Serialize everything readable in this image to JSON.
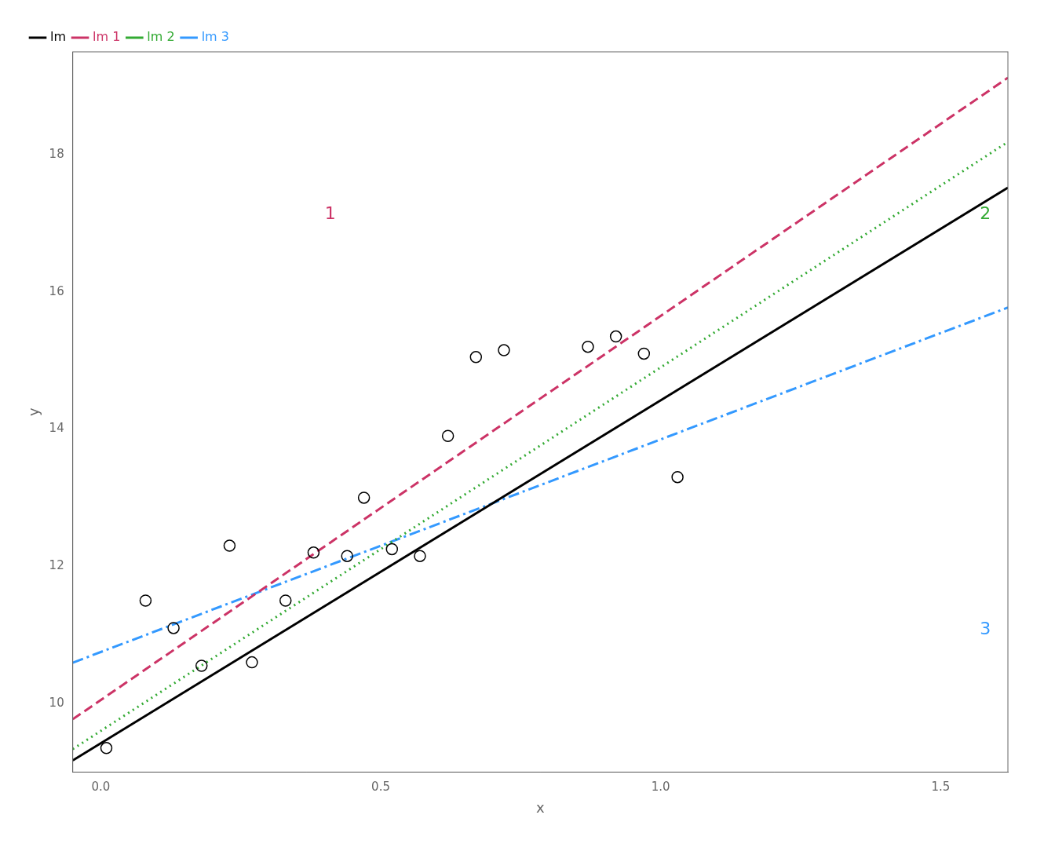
{
  "chart_data": {
    "type": "scatter",
    "xlabel": "x",
    "ylabel": "y",
    "xlim": [
      -0.05,
      1.62
    ],
    "ylim": [
      9.0,
      19.5
    ],
    "xticks": [
      {
        "value": 0,
        "label": "0.0"
      },
      0.5,
      {
        "value": 1,
        "label": "1.0"
      },
      1.5
    ],
    "yticks": [
      10,
      12,
      14,
      16,
      18
    ],
    "grid": false,
    "legend": "upper left",
    "series": [
      {
        "type": "scatter",
        "color": "#000000",
        "marker": "circle",
        "x": [
          0.01,
          0.08,
          0.13,
          0.18,
          0.23,
          0.27,
          0.33,
          0.38,
          0.44,
          0.47,
          0.52,
          0.57,
          0.62,
          0.67,
          0.72,
          0.87,
          0.92,
          0.97,
          1.03
        ],
        "values": [
          9.35,
          11.5,
          11.1,
          10.55,
          12.3,
          10.6,
          11.5,
          12.2,
          12.15,
          13.0,
          12.25,
          12.15,
          13.9,
          15.05,
          15.15,
          15.2,
          15.35,
          15.1,
          13.3
        ]
      },
      {
        "type": "line",
        "name": "lm",
        "color": "#000000",
        "line_style": "solid",
        "x": [
          -0.05,
          1.62
        ],
        "values": [
          9.17,
          17.52
        ]
      },
      {
        "type": "line",
        "name": "lm 1",
        "color": "#cc3366",
        "line_style": "dashed",
        "x": [
          -0.05,
          1.62
        ],
        "values": [
          9.77,
          19.122
        ]
      },
      {
        "type": "line",
        "name": "lm 2",
        "color": "#33aa33",
        "line_style": "dotted",
        "x": [
          -0.05,
          1.62
        ],
        "values": [
          9.335,
          18.186
        ]
      },
      {
        "type": "line",
        "name": "lm 3",
        "color": "#3399ff",
        "line_style": "dashdot",
        "x": [
          -0.05,
          1.62
        ],
        "values": [
          10.595,
          15.772
        ]
      }
    ],
    "annotations": [
      {
        "text": "1",
        "x": 0.4,
        "y": 17.25,
        "color": "#cc3366"
      },
      {
        "text": "2",
        "x": 1.57,
        "y": 17.25,
        "color": "#33aa33"
      },
      {
        "text": "3",
        "x": 1.57,
        "y": 11.2,
        "color": "#3399ff"
      }
    ]
  }
}
